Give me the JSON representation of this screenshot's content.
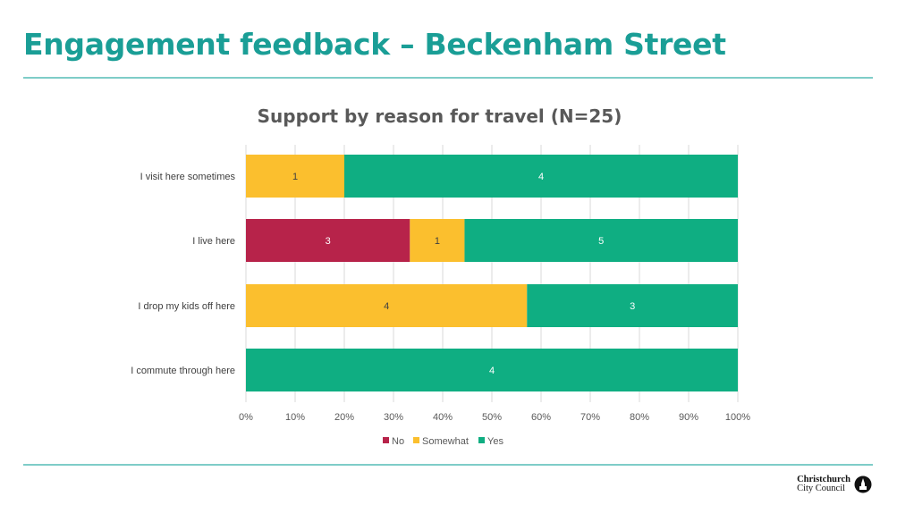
{
  "slide": {
    "title": "Engagement feedback – Beckenham Street",
    "logo": {
      "line1": "Christchurch",
      "line2": "City Council"
    }
  },
  "colors": {
    "accent": "#1a9e96",
    "rule": "#7fcdc8",
    "No": "#b7234a",
    "Somewhat": "#fbbf2e",
    "Yes": "#0fae82"
  },
  "chart_data": {
    "type": "bar",
    "orientation": "horizontal",
    "stacked": "percent",
    "title": "Support by reason for travel (N=25)",
    "categories": [
      "I visit here sometimes",
      "I live here",
      "I drop my kids off here",
      "I commute through here"
    ],
    "series": [
      {
        "name": "No",
        "values": [
          0,
          3,
          0,
          0
        ]
      },
      {
        "name": "Somewhat",
        "values": [
          1,
          1,
          4,
          0
        ]
      },
      {
        "name": "Yes",
        "values": [
          4,
          5,
          3,
          4
        ]
      }
    ],
    "xlim": [
      0,
      100
    ],
    "x_ticks": [
      "0%",
      "10%",
      "20%",
      "30%",
      "40%",
      "50%",
      "60%",
      "70%",
      "80%",
      "90%",
      "100%"
    ],
    "grid": true,
    "legend": "bottom"
  }
}
